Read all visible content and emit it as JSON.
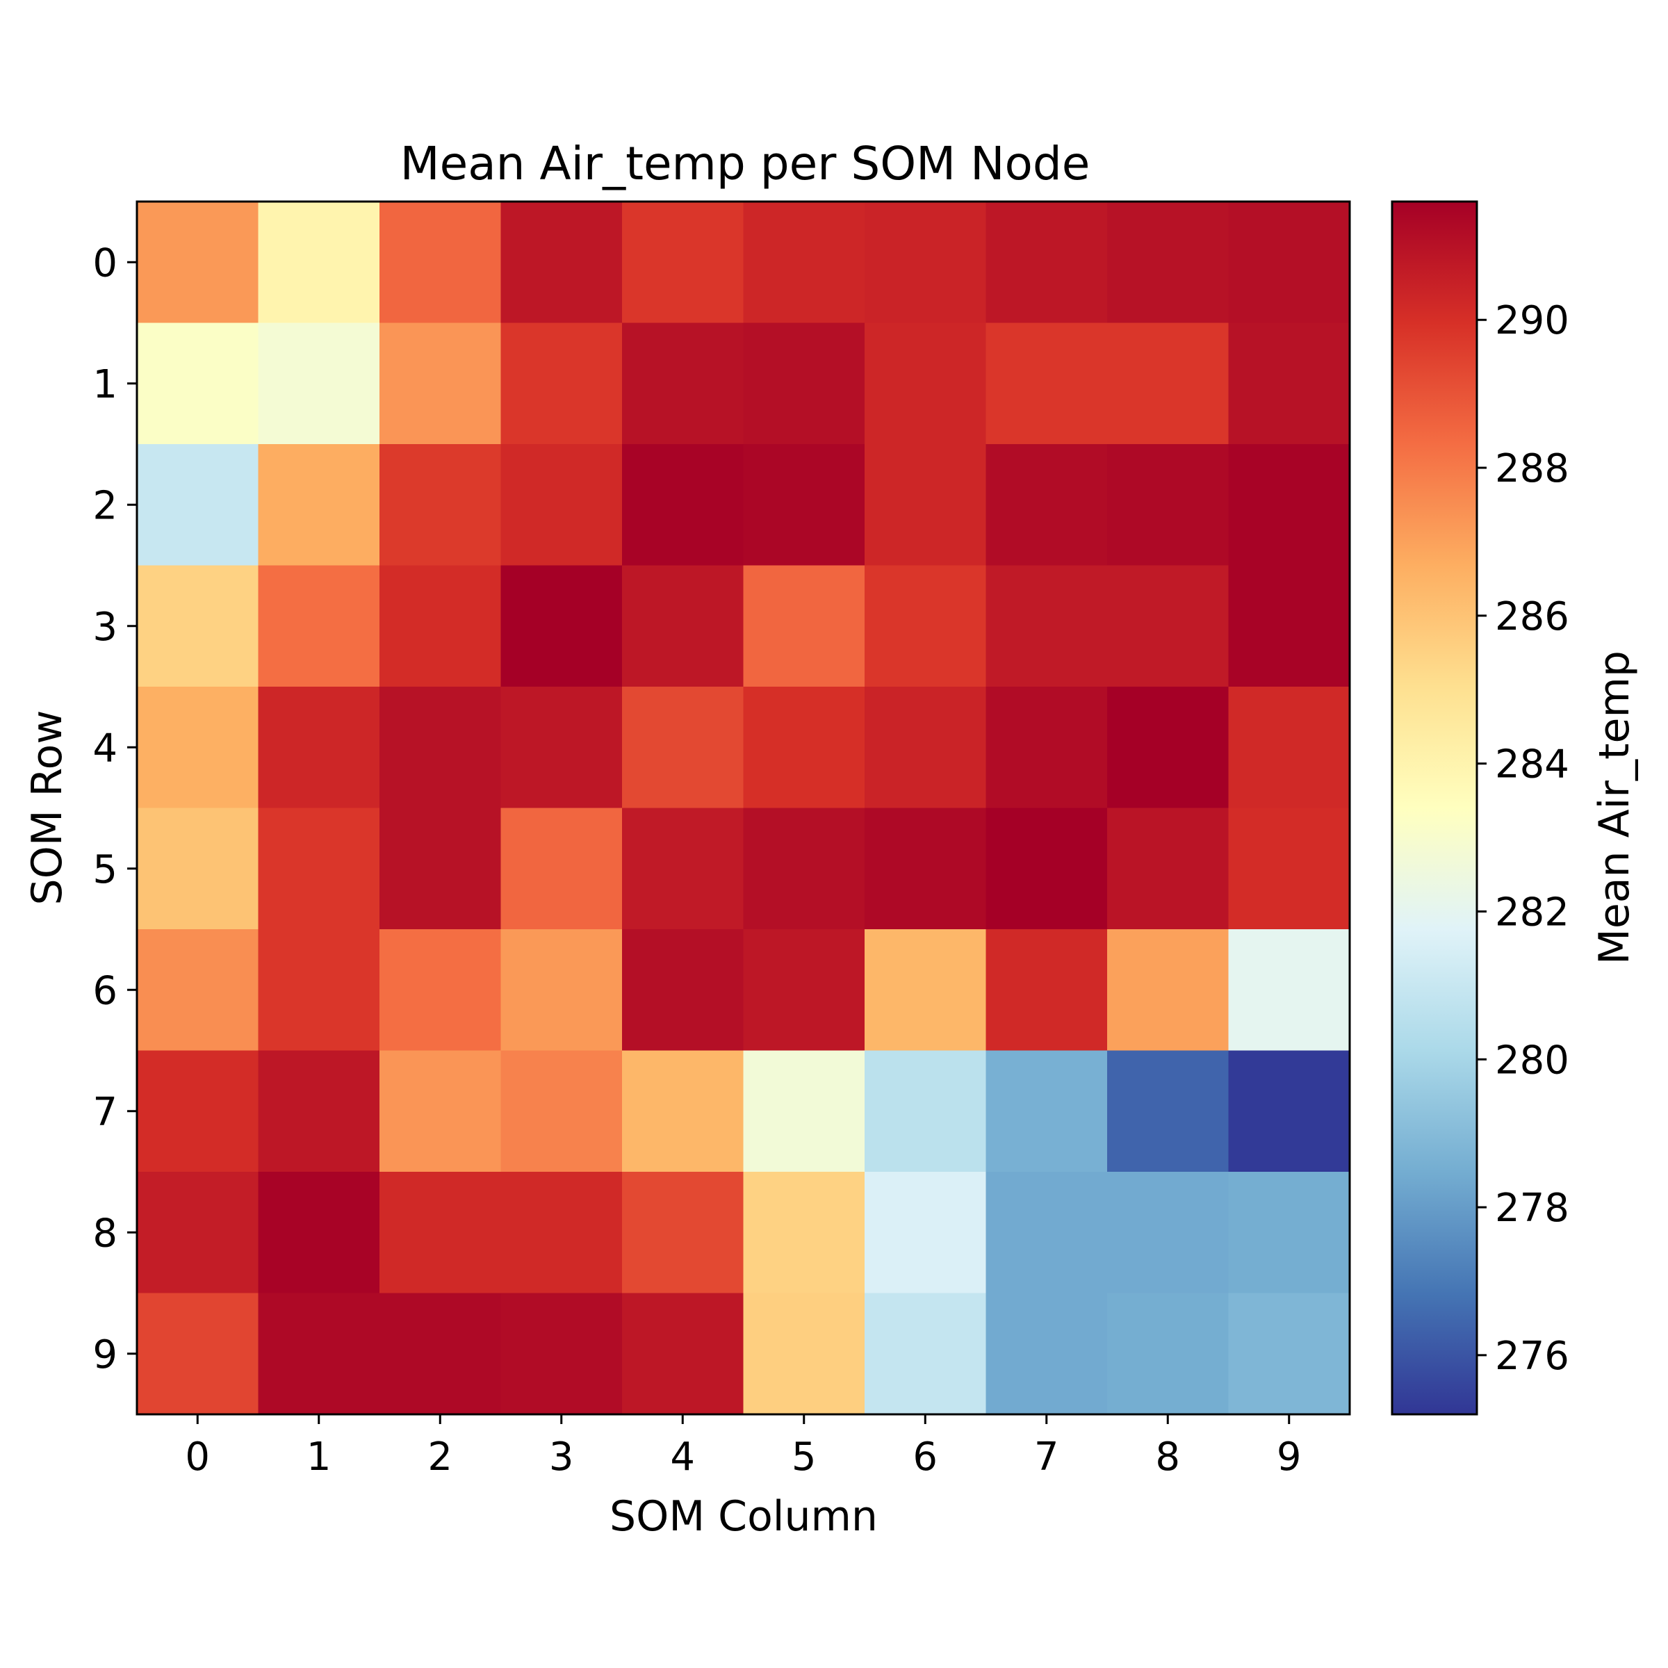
{
  "chart_data": {
    "type": "heatmap",
    "title": "Mean Air_temp per SOM Node",
    "xlabel": "SOM Column",
    "ylabel": "SOM Row",
    "x_categories": [
      "0",
      "1",
      "2",
      "3",
      "4",
      "5",
      "6",
      "7",
      "8",
      "9"
    ],
    "y_categories": [
      "0",
      "1",
      "2",
      "3",
      "4",
      "5",
      "6",
      "7",
      "8",
      "9"
    ],
    "colorbar": {
      "label": "Mean Air_temp",
      "ticks": [
        276,
        278,
        280,
        282,
        284,
        286,
        288,
        290
      ],
      "range": [
        275.2,
        291.6
      ],
      "colormap": "RdYlBu_r",
      "colors": [
        "#313695",
        "#4575b4",
        "#74add1",
        "#abd9e9",
        "#e0f3f8",
        "#ffffbf",
        "#fee090",
        "#fdae61",
        "#f46d43",
        "#d73027",
        "#a50026"
      ]
    },
    "values": [
      [
        287.2,
        284.0,
        288.5,
        290.8,
        289.8,
        290.3,
        290.4,
        290.8,
        291.0,
        291.1
      ],
      [
        283.2,
        282.8,
        287.3,
        289.8,
        291.0,
        291.1,
        290.3,
        289.8,
        289.8,
        291.0
      ],
      [
        281.0,
        286.7,
        289.7,
        290.2,
        291.5,
        291.4,
        290.3,
        291.2,
        291.3,
        291.5
      ],
      [
        285.5,
        288.3,
        290.1,
        291.6,
        290.8,
        288.5,
        289.8,
        290.7,
        290.7,
        291.5
      ],
      [
        286.6,
        290.3,
        291.0,
        290.8,
        289.3,
        290.0,
        290.4,
        291.2,
        291.6,
        290.2
      ],
      [
        286.0,
        289.8,
        291.0,
        288.5,
        290.7,
        291.1,
        291.3,
        291.6,
        290.9,
        290.1
      ],
      [
        287.5,
        289.8,
        288.3,
        287.2,
        291.1,
        290.8,
        286.4,
        290.2,
        287.0,
        282.0
      ],
      [
        290.1,
        290.8,
        287.3,
        287.8,
        286.4,
        282.7,
        280.6,
        278.6,
        276.4,
        275.3
      ],
      [
        290.6,
        291.5,
        290.2,
        290.2,
        289.3,
        285.5,
        281.6,
        278.4,
        278.4,
        278.5
      ],
      [
        289.4,
        291.3,
        291.3,
        291.2,
        290.8,
        285.6,
        280.9,
        278.4,
        278.5,
        278.8
      ]
    ]
  }
}
